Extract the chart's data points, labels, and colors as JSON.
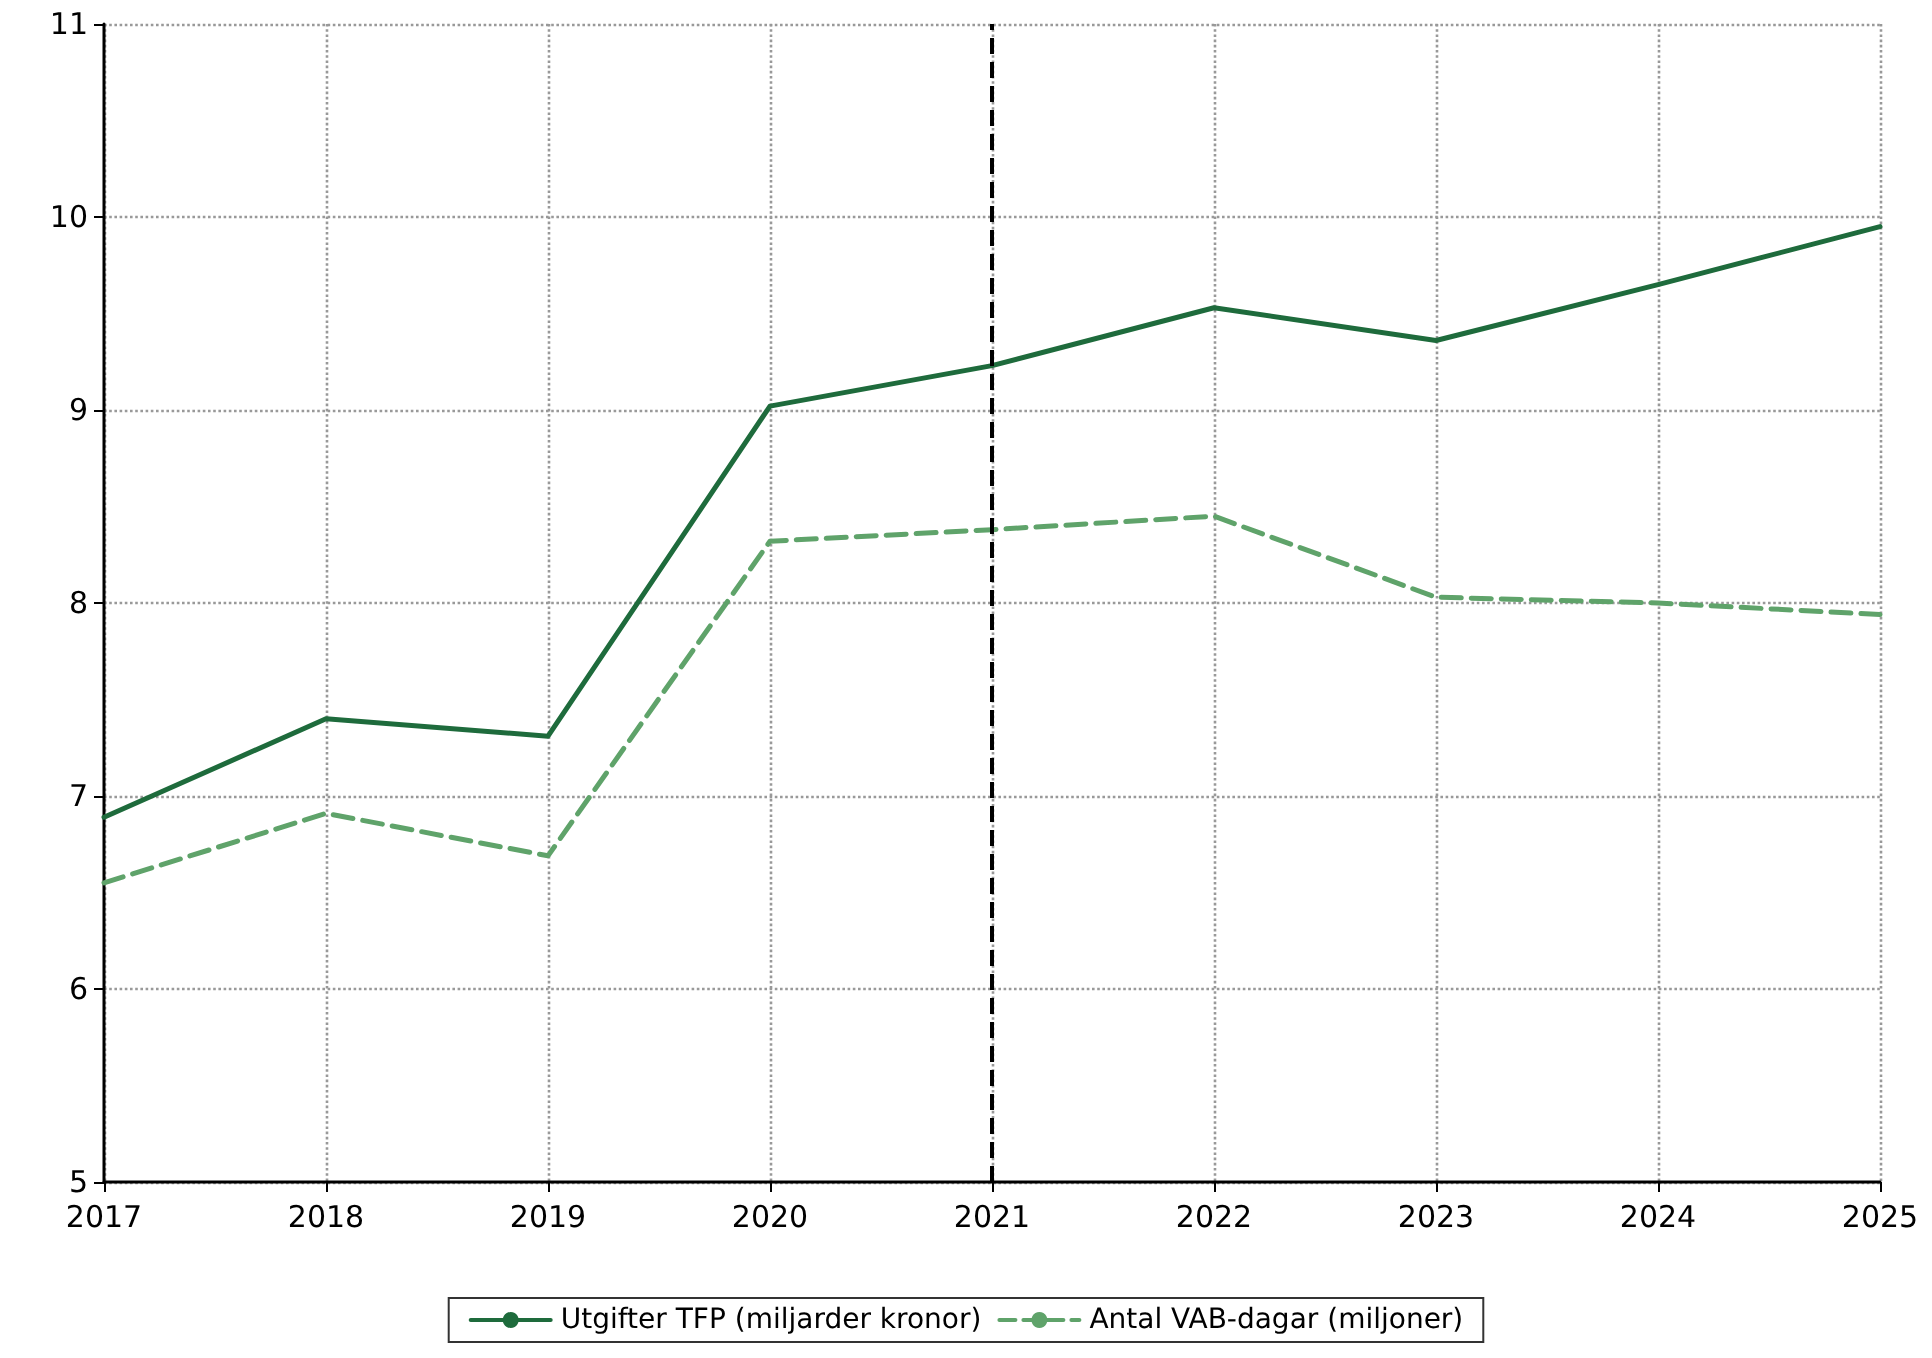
{
  "chart_data": {
    "type": "line",
    "x": [
      2017,
      2018,
      2019,
      2020,
      2021,
      2022,
      2023,
      2024,
      2025
    ],
    "series": [
      {
        "name": "Utgifter TFP (miljarder kronor)",
        "color": "#1e6b3c",
        "line_style": "solid",
        "values": [
          6.89,
          7.4,
          7.31,
          9.02,
          9.23,
          9.53,
          9.36,
          9.65,
          9.95
        ]
      },
      {
        "name": "Antal VAB-dagar (miljoner)",
        "color": "#5fa36a",
        "line_style": "dashed",
        "values": [
          6.55,
          6.91,
          6.69,
          8.32,
          8.38,
          8.45,
          8.03,
          8.0,
          7.94
        ]
      }
    ],
    "xlim": [
      2017,
      2025
    ],
    "xticks": [
      2017,
      2018,
      2019,
      2020,
      2021,
      2022,
      2023,
      2024,
      2025
    ],
    "ylim": [
      5,
      11
    ],
    "yticks": [
      5,
      6,
      7,
      8,
      9,
      10,
      11
    ],
    "grid": true,
    "legend": "bottom",
    "marker": "none",
    "ref_lines": [
      {
        "axis": "x",
        "value": 2021,
        "color": "#000000",
        "line_style": "dashed"
      }
    ]
  }
}
